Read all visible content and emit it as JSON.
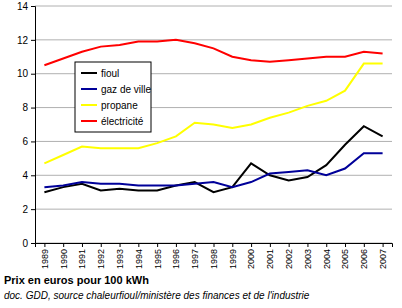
{
  "chart_data": {
    "type": "line",
    "title": "Prix en euros pour 100 kWh",
    "subtitle": "doc. GDD, source chaleurfioul/ministère des finances et de l'industrie",
    "categories": [
      "1989",
      "1990",
      "1991",
      "1992",
      "1993",
      "1994",
      "1995",
      "1996",
      "1997",
      "1998",
      "1999",
      "2000",
      "2001",
      "2002",
      "2003",
      "2004",
      "2005",
      "2006",
      "2007"
    ],
    "series": [
      {
        "name": "fioul",
        "color": "#000000",
        "values": [
          3.0,
          3.3,
          3.5,
          3.1,
          3.2,
          3.1,
          3.1,
          3.4,
          3.6,
          3.0,
          3.3,
          4.7,
          4.0,
          3.7,
          3.9,
          4.6,
          5.8,
          6.9,
          6.3
        ]
      },
      {
        "name": "gaz de ville",
        "color": "#000099",
        "values": [
          3.3,
          3.4,
          3.6,
          3.5,
          3.5,
          3.4,
          3.4,
          3.4,
          3.5,
          3.6,
          3.3,
          3.6,
          4.1,
          4.2,
          4.3,
          4.0,
          4.4,
          5.3,
          5.3
        ]
      },
      {
        "name": "propane",
        "color": "#ffff00",
        "values": [
          4.7,
          5.2,
          5.7,
          5.6,
          5.6,
          5.6,
          5.9,
          6.3,
          7.1,
          7.0,
          6.8,
          7.0,
          7.4,
          7.7,
          8.1,
          8.4,
          9.0,
          10.6,
          10.6
        ]
      },
      {
        "name": "électricité",
        "color": "#ff0000",
        "values": [
          10.5,
          10.9,
          11.3,
          11.6,
          11.7,
          11.9,
          11.9,
          12.0,
          11.8,
          11.5,
          11.0,
          10.8,
          10.7,
          10.8,
          10.9,
          11.0,
          11.0,
          11.3,
          11.2
        ]
      }
    ],
    "ylim": [
      0,
      14
    ],
    "yticks": [
      0,
      2,
      4,
      6,
      8,
      10,
      12,
      14
    ],
    "grid": true,
    "legend": "upper-left"
  }
}
